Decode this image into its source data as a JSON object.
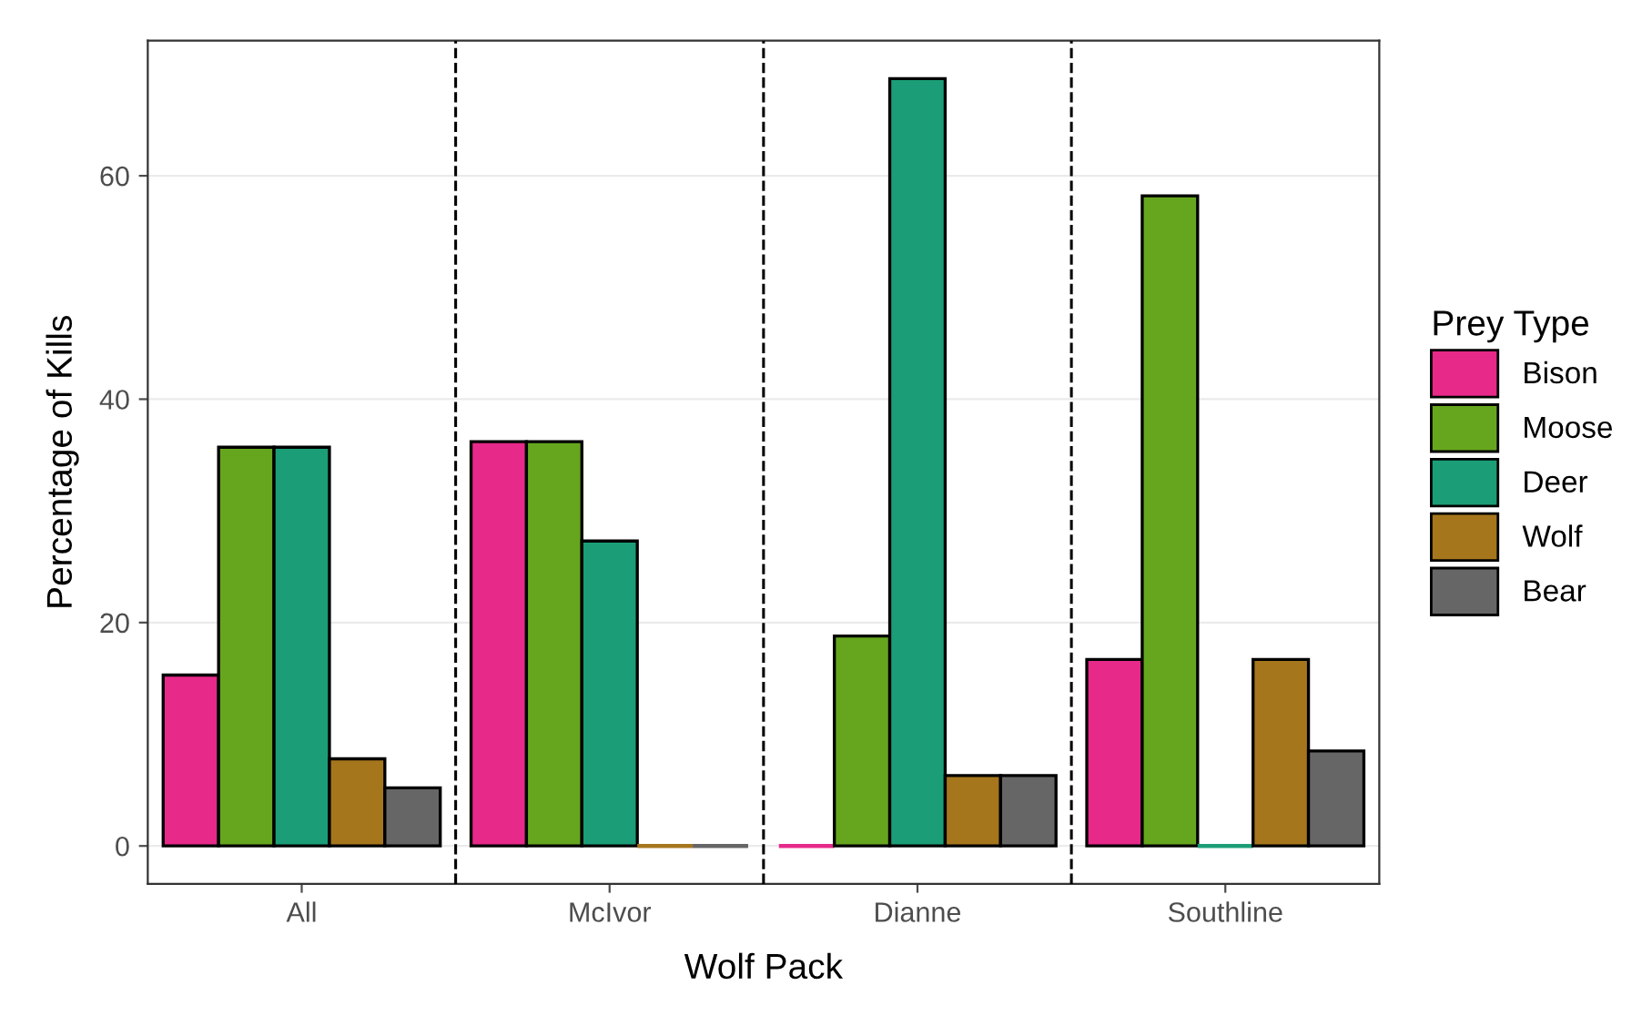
{
  "chart_data": {
    "type": "bar",
    "xlabel": "Wolf Pack",
    "ylabel": "Percentage of Kills",
    "legend_title": "Prey Type",
    "categories": [
      "All",
      "McIvor",
      "Dianne",
      "Southline"
    ],
    "series": [
      {
        "name": "Bison",
        "color": "#e7298a",
        "values": [
          15.3,
          36.2,
          0,
          16.7
        ]
      },
      {
        "name": "Moose",
        "color": "#66a61e",
        "values": [
          35.7,
          36.2,
          18.8,
          58.2
        ]
      },
      {
        "name": "Deer",
        "color": "#1b9e77",
        "values": [
          35.7,
          27.3,
          68.7,
          0
        ]
      },
      {
        "name": "Wolf",
        "color": "#a6761d",
        "values": [
          7.8,
          0,
          6.3,
          16.7
        ]
      },
      {
        "name": "Bear",
        "color": "#666666",
        "values": [
          5.2,
          0,
          6.3,
          8.5
        ]
      }
    ],
    "ylim": [
      -3.4,
      72.1
    ],
    "yticks": [
      0,
      20,
      40,
      60
    ],
    "grid": "y",
    "legend": "right"
  }
}
